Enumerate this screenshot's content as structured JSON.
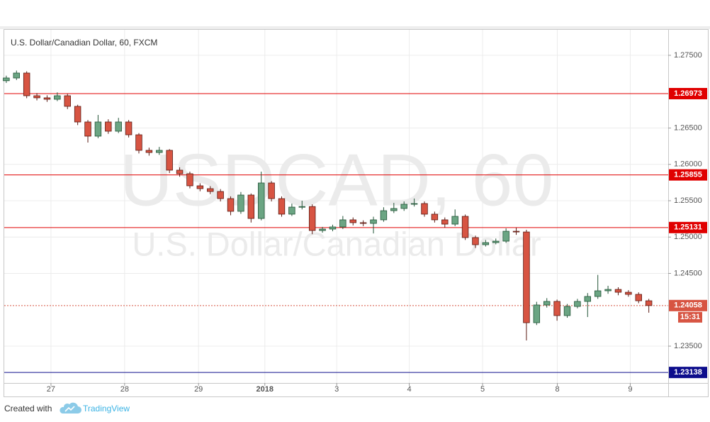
{
  "chart_data": {
    "type": "candlestick",
    "title": "U.S. Dollar/Canadian Dollar, 60, FXCM",
    "watermark": "USDCAD, 60",
    "watermark_subtitle": "U.S. Dollar/Canadian Dollar",
    "up_color": "#6ba583",
    "down_color": "#d75442",
    "up_border": "#225437",
    "down_border": "#5b1a13",
    "grid": true,
    "open": [
      1.2715,
      1.27188,
      1.27256,
      1.26944,
      1.26915,
      1.26895,
      1.26944,
      1.26798,
      1.26583,
      1.26388,
      1.26583,
      1.26456,
      1.26583,
      1.26407,
      1.26193,
      1.26163,
      1.26193,
      1.2592,
      1.25871,
      1.25705,
      1.25666,
      1.25627,
      1.25529,
      1.25354,
      1.25578,
      1.25256,
      1.25744,
      1.25529,
      1.25315,
      1.25412,
      1.2542,
      1.2509,
      1.2511,
      1.25139,
      1.25237,
      1.25198,
      1.25188,
      1.25237,
      1.25363,
      1.25393,
      1.25451,
      1.25461,
      1.25315,
      1.25237,
      1.25178,
      1.25285,
      1.24993,
      1.24895,
      1.24924,
      1.24944,
      1.2508,
      1.2507,
      1.23822,
      1.24066,
      1.24115,
      1.2392,
      1.24046,
      1.24115,
      1.24183,
      1.24261,
      1.2428,
      1.24241,
      1.24212,
      1.24124
    ],
    "high": [
      1.2722,
      1.2729,
      1.2728,
      1.2698,
      1.2695,
      1.2699,
      1.2697,
      1.2682,
      1.2661,
      1.2668,
      1.2662,
      1.2664,
      1.2661,
      1.2643,
      1.2623,
      1.2624,
      1.2621,
      1.2596,
      1.259,
      1.2574,
      1.257,
      1.2566,
      1.2556,
      1.2562,
      1.256,
      1.259,
      1.2577,
      1.2556,
      1.2546,
      1.255,
      1.2545,
      1.2514,
      1.2517,
      1.2529,
      1.2527,
      1.2523,
      1.2528,
      1.2541,
      1.2547,
      1.2549,
      1.2553,
      1.2549,
      1.2535,
      1.2527,
      1.2538,
      1.2531,
      1.2502,
      1.2496,
      1.2498,
      1.2512,
      1.2513,
      1.251,
      1.2411,
      1.2416,
      1.2414,
      1.2408,
      1.2415,
      1.2423,
      1.2448,
      1.2433,
      1.2431,
      1.2427,
      1.2424,
      1.2415
    ],
    "low": [
      1.2712,
      1.2716,
      1.2691,
      1.2688,
      1.2686,
      1.2687,
      1.2676,
      1.2654,
      1.263,
      1.2636,
      1.2642,
      1.2643,
      1.2637,
      1.2615,
      1.2612,
      1.2613,
      1.2588,
      1.2583,
      1.2567,
      1.2563,
      1.2559,
      1.2549,
      1.253,
      1.2532,
      1.252,
      1.2523,
      1.2549,
      1.2528,
      1.2529,
      1.2538,
      1.2504,
      1.2506,
      1.2508,
      1.2511,
      1.2516,
      1.2515,
      1.2505,
      1.2521,
      1.2533,
      1.2536,
      1.2542,
      1.2528,
      1.252,
      1.2513,
      1.2515,
      1.2496,
      1.2485,
      1.2487,
      1.249,
      1.2492,
      1.2503,
      1.23578,
      1.2379,
      1.2403,
      1.2385,
      1.2389,
      1.2402,
      1.239,
      1.2415,
      1.2422,
      1.242,
      1.2418,
      1.2409,
      1.2396
    ],
    "close": [
      1.27188,
      1.27256,
      1.26944,
      1.26915,
      1.26895,
      1.26944,
      1.26798,
      1.26583,
      1.26388,
      1.26583,
      1.26456,
      1.26583,
      1.26407,
      1.26193,
      1.26163,
      1.26193,
      1.2592,
      1.25871,
      1.25705,
      1.25666,
      1.25627,
      1.25529,
      1.25354,
      1.25578,
      1.25256,
      1.25744,
      1.25529,
      1.25315,
      1.25412,
      1.2542,
      1.2509,
      1.2511,
      1.25139,
      1.25237,
      1.25198,
      1.25188,
      1.25237,
      1.25363,
      1.25393,
      1.25451,
      1.25461,
      1.25315,
      1.25237,
      1.25178,
      1.25285,
      1.24993,
      1.24895,
      1.24924,
      1.24944,
      1.2508,
      1.2507,
      1.23822,
      1.24066,
      1.24115,
      1.2392,
      1.24046,
      1.24115,
      1.24183,
      1.24261,
      1.2428,
      1.24241,
      1.24212,
      1.24124,
      1.24058
    ],
    "xlim": [
      -0.2,
      64.9
    ],
    "xticks": [
      {
        "value": 4.38,
        "label": "27"
      },
      {
        "value": 11.6,
        "label": "28"
      },
      {
        "value": 18.85,
        "label": "29"
      },
      {
        "value": 25.35,
        "label": "2018"
      },
      {
        "value": 32.4,
        "label": "3"
      },
      {
        "value": 39.51,
        "label": "4"
      },
      {
        "value": 46.7,
        "label": "5"
      },
      {
        "value": 54.03,
        "label": "8"
      },
      {
        "value": 61.18,
        "label": "9"
      }
    ],
    "bold_xtick": 3,
    "ylim": [
      1.22993,
      1.27851
    ],
    "yticks": [
      {
        "value": 1.275,
        "label": "1.27500"
      },
      {
        "value": 1.265,
        "label": "1.26500"
      },
      {
        "value": 1.26,
        "label": "1.26000"
      },
      {
        "value": 1.255,
        "label": "1.25500"
      },
      {
        "value": 1.25,
        "label": "1.25000"
      },
      {
        "value": 1.245,
        "label": "1.24500"
      },
      {
        "value": 1.235,
        "label": "1.23500"
      }
    ],
    "hlines": [
      {
        "value": 1.26973,
        "label": "1.26973",
        "color": "#e00000",
        "dash": false
      },
      {
        "value": 1.25855,
        "label": "1.25855",
        "color": "#e00000",
        "dash": false
      },
      {
        "value": 1.25131,
        "label": "1.25131",
        "color": "#e00000",
        "dash": false
      },
      {
        "value": 1.24058,
        "label": "1.24058",
        "color": "#d75442",
        "dash": true,
        "countdown": "15:31"
      },
      {
        "value": 1.23138,
        "label": "1.23138",
        "color": "#0d0d8c",
        "dash": false
      }
    ]
  },
  "footer": {
    "prefix": "Created with",
    "brand": "TradingView"
  }
}
